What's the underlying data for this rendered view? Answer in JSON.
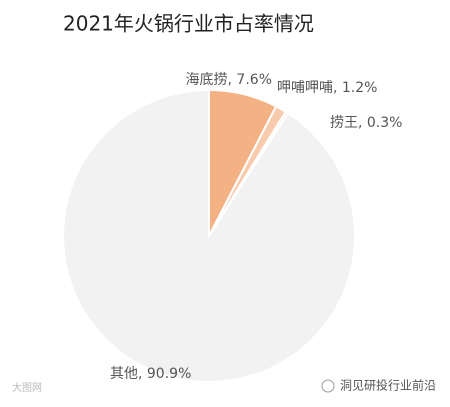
{
  "chart_data": {
    "type": "pie",
    "title": "2021年火锅行业市占率情况",
    "values": [
      7.6,
      1.2,
      0.3,
      90.9
    ],
    "value_labels": [
      "海底捞, 7.6%",
      "呷哺呷哺, 1.2%",
      "捞王, 0.3%",
      "其他, 90.9%"
    ],
    "colors": [
      "#f4b183",
      "#f8cbad",
      "#fbe5d6",
      "#f2f2f2"
    ]
  },
  "watermarks": {
    "left": "大图网",
    "right": "洞见研投行业前沿"
  }
}
